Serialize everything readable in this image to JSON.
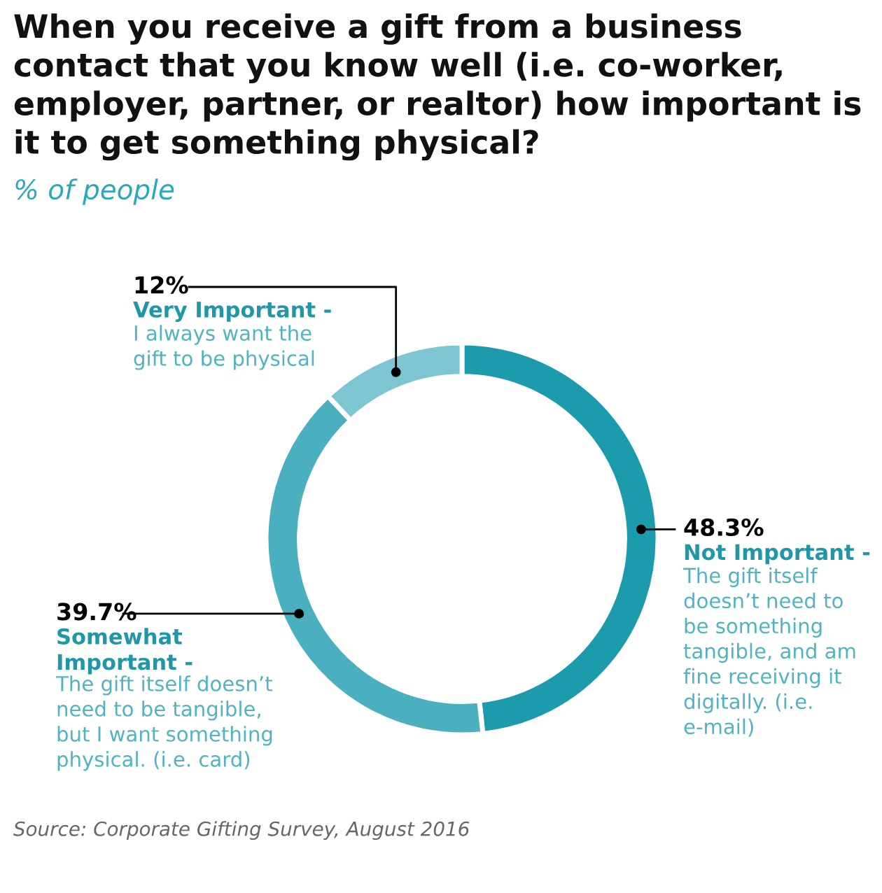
{
  "chart_data": {
    "type": "donut",
    "title": "When you receive a gift from a business contact that you know well (i.e. co-worker, employer, partner, or realtor) how important is it to get something physical?",
    "subtitle": "% of people",
    "categories": [
      "Not Important -",
      "Somewhat\nImportant -",
      "Very Important -"
    ],
    "values": [
      48.3,
      39.7,
      12
    ],
    "value_labels": [
      "48.3%",
      "39.7%",
      "12%"
    ],
    "colors": [
      "#1b9bac",
      "#4aafbf",
      "#7cc5d1"
    ],
    "annotations": [
      "The gift itself\ndoesn’t need to\nbe something\ntangible, and am\nfine receiving it\ndigitally. (i.e.\ne-mail)",
      "The gift itself doesn’t\nneed to be tangible,\nbut I want something\nphysical. (i.e. card)",
      "I always want the\ngift to be physical",
      "Source: Corporate Gifting Survey, August 2016"
    ],
    "legend": false
  }
}
